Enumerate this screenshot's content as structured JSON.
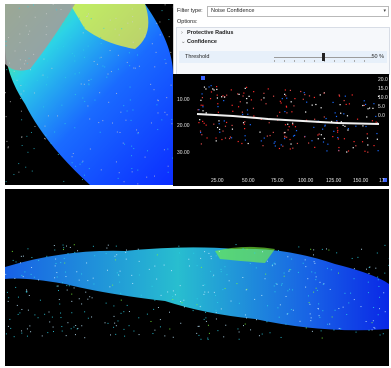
{
  "filter_panel": {
    "filter_type_label": "Filter type:",
    "filter_type_value": "Noise Confidence",
    "options_label": "Options:",
    "tree": [
      {
        "label": "Protective Radius",
        "expanded": false
      },
      {
        "label": "Confidence",
        "expanded": true
      }
    ],
    "threshold": {
      "label": "Threshold",
      "value_text": "50 %",
      "value": 0.5
    }
  },
  "chart": {
    "y_ticks": [
      "10.00",
      "20.00",
      "30.00"
    ],
    "x_ticks": [
      "25.00",
      "50.00",
      "75.00",
      "100.00",
      "125.00",
      "150.00",
      "17"
    ],
    "right_labels": [
      "20.0",
      "15.0",
      "10.0",
      "5.0",
      "0.0"
    ]
  },
  "icons": {
    "expand_collapsed": "chevron-right-icon",
    "expand_open": "chevron-down-icon",
    "dropdown": "chevron-down-icon"
  },
  "colors": {
    "point_blue": "#1a6bff",
    "point_cyan": "#2cd3e6",
    "point_green": "#7cfc3a",
    "point_yellow": "#f1f23a",
    "point_red": "#ff2a2a",
    "chart_line": "#f0f0f0"
  }
}
